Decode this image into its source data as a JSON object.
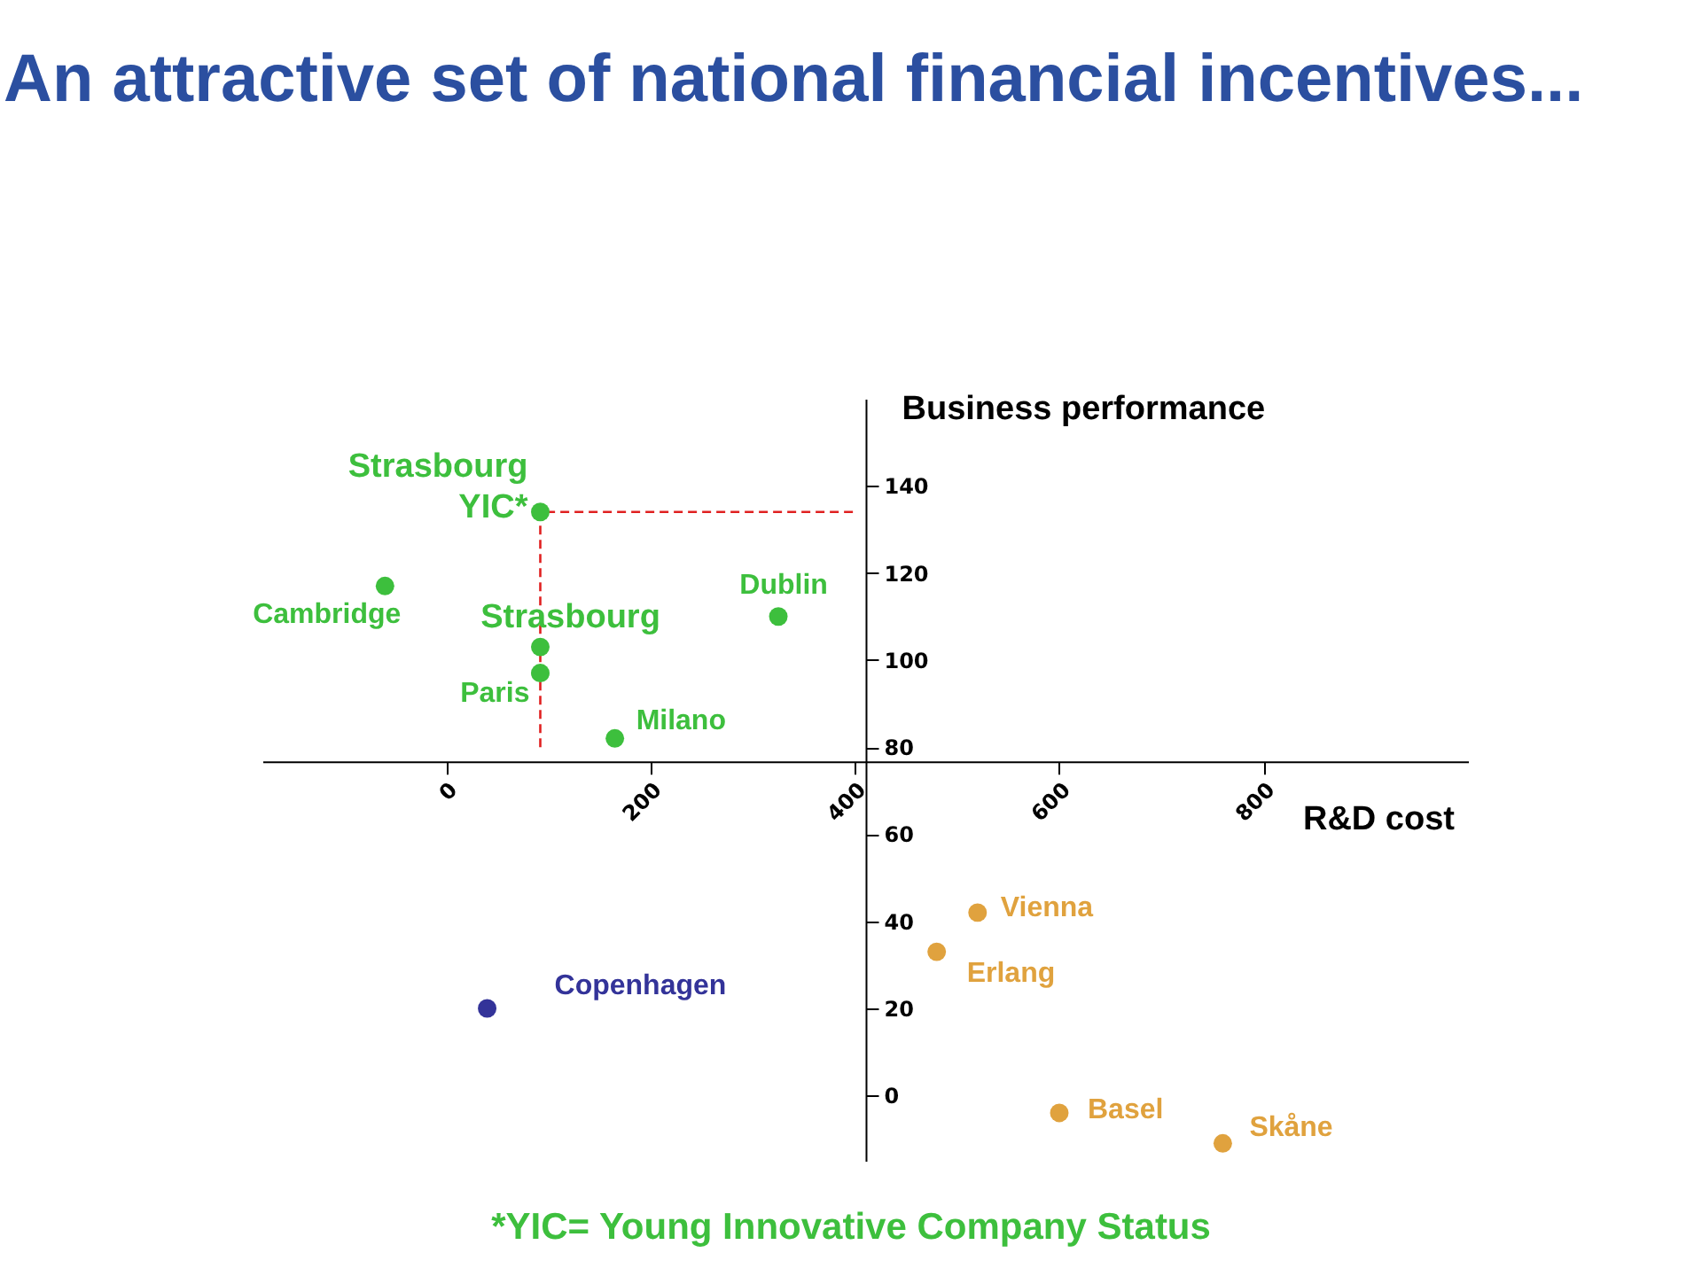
{
  "chart_data": {
    "type": "scatter",
    "title": "An attractive set of national financial incentives...",
    "xlabel": "R&D cost",
    "ylabel": "Business performance",
    "xlim": [
      -180,
      1000
    ],
    "ylim": [
      -15,
      160
    ],
    "xticks": [
      0,
      200,
      400,
      600,
      800
    ],
    "yticks": [
      0,
      20,
      40,
      60,
      80,
      100,
      120,
      140
    ],
    "marker": "circle",
    "series": [
      {
        "color": "#3dbf3d",
        "x": [
          92,
          -60,
          92,
          92,
          165,
          325
        ],
        "values": [
          134,
          117,
          103,
          97,
          82,
          110
        ]
      },
      {
        "color": "#333399",
        "x": [
          40
        ],
        "values": [
          20
        ]
      },
      {
        "color": "#e0a23e",
        "x": [
          520,
          480,
          600,
          760
        ],
        "values": [
          42,
          33,
          -4,
          -11
        ]
      },
      {
        "type": "line",
        "color": "#e02020",
        "line_style": "dashed",
        "marker": "none",
        "x": [
          92,
          92,
          400
        ],
        "values": [
          80,
          134,
          134
        ]
      }
    ],
    "annotations": [
      {
        "text": "Strasbourg YIC*",
        "x": 92,
        "y": 134
      },
      {
        "text": "Cambridge",
        "x": -60,
        "y": 117
      },
      {
        "text": "Strasbourg",
        "x": 92,
        "y": 103
      },
      {
        "text": "Paris",
        "x": 92,
        "y": 97
      },
      {
        "text": "Milano",
        "x": 165,
        "y": 82
      },
      {
        "text": "Dublin",
        "x": 325,
        "y": 110
      },
      {
        "text": "Copenhagen",
        "x": 40,
        "y": 20
      },
      {
        "text": "Vienna",
        "x": 520,
        "y": 42
      },
      {
        "text": "Erlang",
        "x": 480,
        "y": 33
      },
      {
        "text": "Basel",
        "x": 600,
        "y": -4
      },
      {
        "text": "Skåne",
        "x": 760,
        "y": -11
      },
      "*YIC= Young Innovative Company Status"
    ]
  }
}
